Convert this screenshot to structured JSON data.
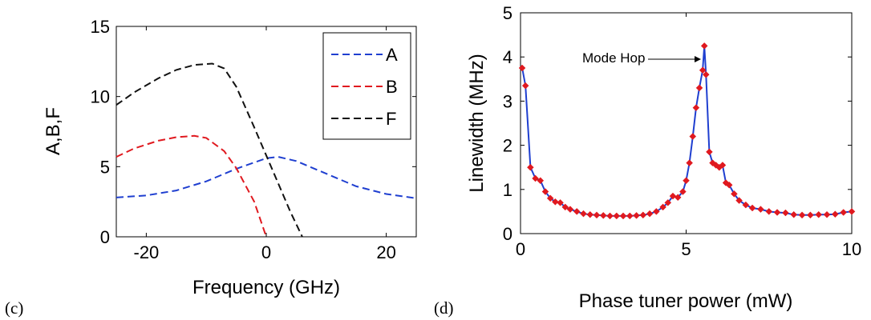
{
  "panel_labels": {
    "left": "(c)",
    "right": "(d)"
  },
  "chart_data": [
    {
      "type": "line",
      "xlabel": "Frequency (GHz)",
      "ylabel": "A,B,F",
      "xlim": [
        -25,
        25
      ],
      "ylim": [
        0,
        15
      ],
      "xticks": [
        -20,
        0,
        20
      ],
      "yticks": [
        0,
        5,
        10,
        15
      ],
      "grid": false,
      "legend_position": "top-right",
      "series": [
        {
          "name": "A",
          "color": "#1f3fd0",
          "style": "dashed",
          "x": [
            -25,
            -20,
            -15,
            -10,
            -5,
            0,
            2,
            5,
            10,
            15,
            20,
            25
          ],
          "y": [
            2.8,
            2.95,
            3.3,
            3.95,
            4.85,
            5.6,
            5.7,
            5.4,
            4.5,
            3.6,
            3.05,
            2.75
          ]
        },
        {
          "name": "B",
          "color": "#e0191f",
          "style": "dashed",
          "x": [
            -25,
            -22,
            -18,
            -15,
            -12,
            -10,
            -7,
            -5,
            -2,
            0
          ],
          "y": [
            5.7,
            6.3,
            6.85,
            7.1,
            7.2,
            7.05,
            6.1,
            4.9,
            2.5,
            0
          ]
        },
        {
          "name": "F",
          "color": "#111111",
          "style": "dashed",
          "x": [
            -25,
            -22,
            -18,
            -15,
            -12,
            -9,
            -7,
            -5,
            -2,
            0,
            2,
            4,
            6
          ],
          "y": [
            9.4,
            10.3,
            11.3,
            11.9,
            12.25,
            12.35,
            12.0,
            10.7,
            7.8,
            5.8,
            3.8,
            1.8,
            0
          ]
        }
      ]
    },
    {
      "type": "line",
      "xlabel": "Phase tuner power (mW)",
      "ylabel": "Linewidth (MHz)",
      "xlim": [
        0,
        10
      ],
      "ylim": [
        0,
        5
      ],
      "xticks": [
        0,
        5,
        10
      ],
      "yticks": [
        0,
        1,
        2,
        3,
        4,
        5
      ],
      "grid": false,
      "annotation": {
        "text": "Mode Hop",
        "x": 5.55,
        "y": 4.2
      },
      "series": [
        {
          "name": "",
          "color": "#1f3fd0",
          "marker_color": "#e0191f",
          "marker": "diamond",
          "x": [
            0.05,
            0.15,
            0.3,
            0.45,
            0.6,
            0.75,
            0.9,
            1.05,
            1.2,
            1.35,
            1.5,
            1.7,
            1.9,
            2.1,
            2.3,
            2.5,
            2.7,
            2.9,
            3.1,
            3.3,
            3.5,
            3.7,
            3.9,
            4.1,
            4.3,
            4.45,
            4.6,
            4.75,
            4.9,
            5.0,
            5.1,
            5.2,
            5.3,
            5.4,
            5.5,
            5.55,
            5.6,
            5.7,
            5.8,
            5.9,
            6.0,
            6.1,
            6.2,
            6.3,
            6.45,
            6.6,
            6.8,
            7.0,
            7.25,
            7.5,
            7.75,
            8.0,
            8.25,
            8.5,
            8.75,
            9.0,
            9.25,
            9.5,
            9.75,
            10.0
          ],
          "y": [
            3.75,
            3.35,
            1.5,
            1.25,
            1.2,
            0.95,
            0.8,
            0.72,
            0.7,
            0.6,
            0.55,
            0.5,
            0.45,
            0.43,
            0.42,
            0.41,
            0.4,
            0.4,
            0.4,
            0.4,
            0.41,
            0.42,
            0.45,
            0.5,
            0.6,
            0.7,
            0.85,
            0.82,
            0.95,
            1.2,
            1.6,
            2.2,
            2.85,
            3.3,
            3.7,
            4.25,
            3.6,
            1.85,
            1.6,
            1.55,
            1.5,
            1.55,
            1.15,
            1.1,
            0.9,
            0.75,
            0.65,
            0.58,
            0.55,
            0.5,
            0.48,
            0.47,
            0.43,
            0.42,
            0.42,
            0.43,
            0.43,
            0.44,
            0.48,
            0.5
          ]
        }
      ]
    }
  ]
}
